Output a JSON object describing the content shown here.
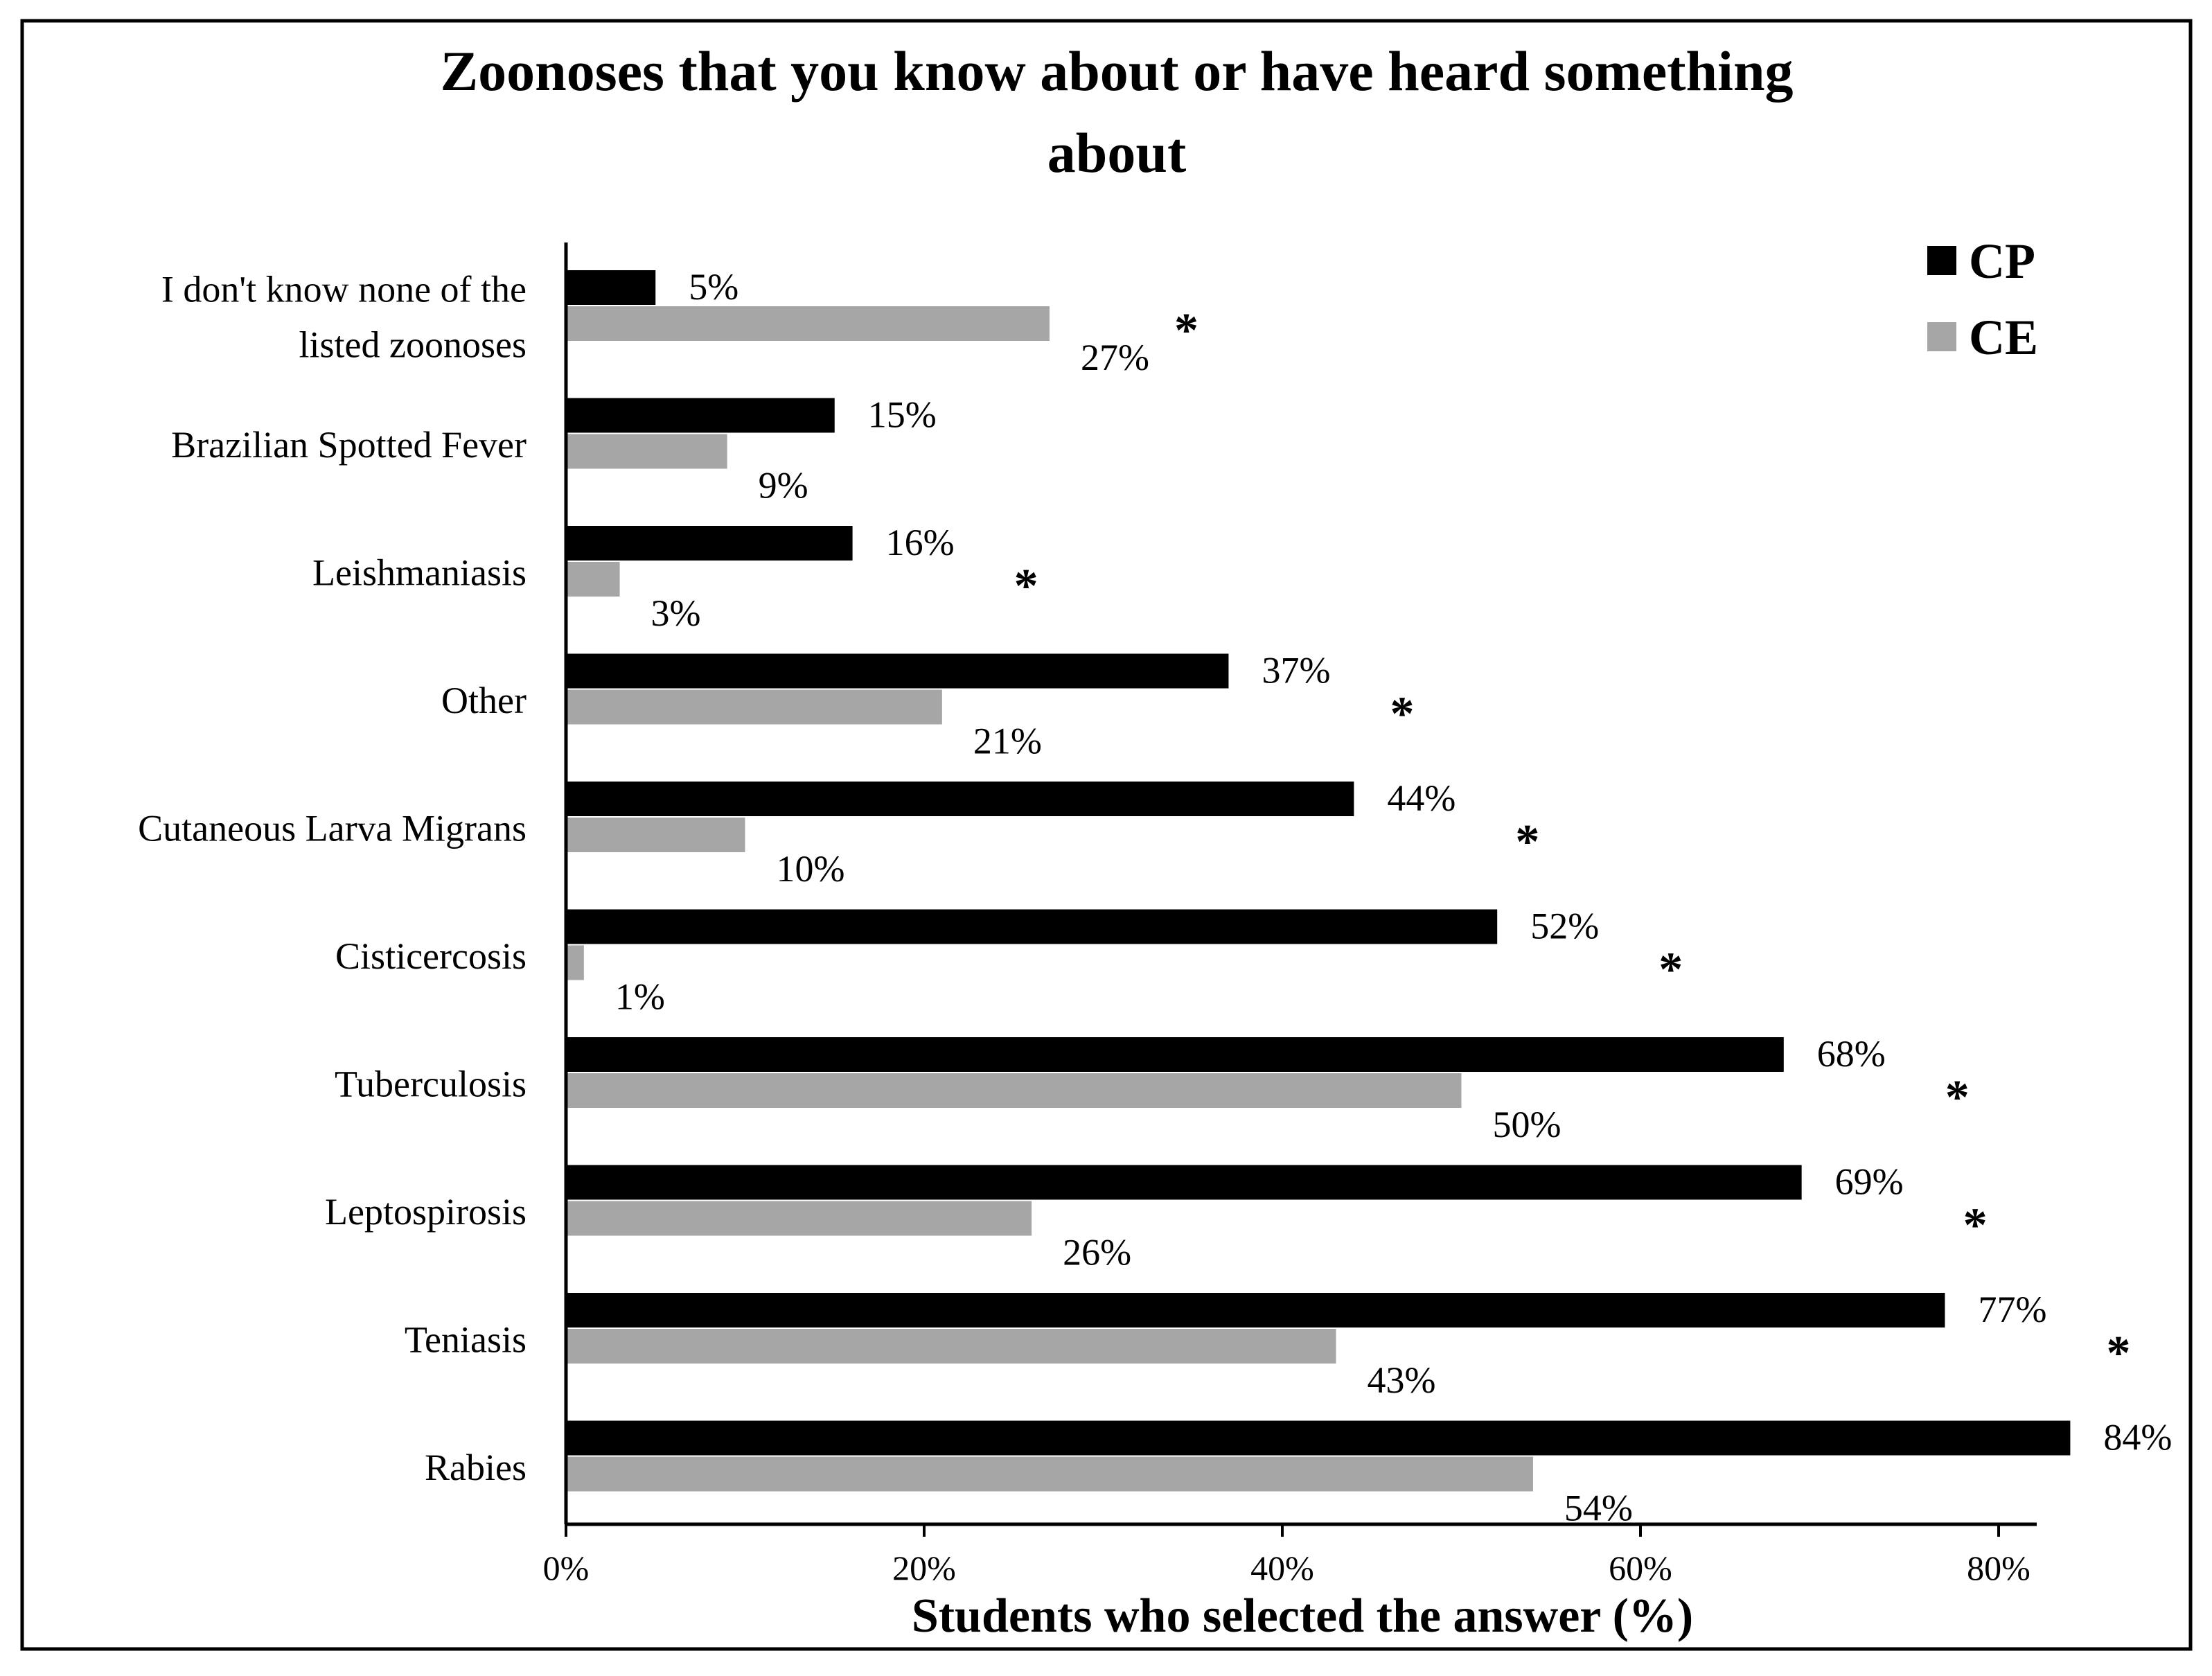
{
  "chart_data": {
    "type": "bar",
    "orientation": "horizontal",
    "title_lines": [
      "Zoonoses that you know about or have heard something",
      "about"
    ],
    "xlabel": "Students who selected the answer (%)",
    "ylabel": "",
    "xlim": [
      0,
      85
    ],
    "xticks": [
      0,
      20,
      40,
      60,
      80
    ],
    "xtick_labels": [
      "0%",
      "20%",
      "40%",
      "60%",
      "80%"
    ],
    "grid": false,
    "legend_position": "top-right",
    "categories": [
      [
        "I don't know none of the",
        "listed zoonoses"
      ],
      [
        "Brazilian Spotted Fever"
      ],
      [
        "Leishmaniasis"
      ],
      [
        "Other"
      ],
      [
        "Cutaneous Larva Migrans"
      ],
      [
        "Cisticercosis"
      ],
      [
        "Tuberculosis"
      ],
      [
        "Leptospirosis"
      ],
      [
        "Teniasis"
      ],
      [
        "Rabies"
      ]
    ],
    "series": [
      {
        "name": "CP",
        "color": "#000000",
        "values": [
          5,
          15,
          16,
          37,
          44,
          52,
          68,
          69,
          77,
          84
        ],
        "labels": [
          "5%",
          "15%",
          "16%",
          "37%",
          "44%",
          "52%",
          "68%",
          "69%",
          "77%",
          "84%"
        ]
      },
      {
        "name": "CE",
        "color": "#a6a6a6",
        "values": [
          27,
          9,
          3,
          21,
          10,
          1,
          50,
          26,
          43,
          54
        ],
        "labels": [
          "27%",
          "9%",
          "3%",
          "21%",
          "10%",
          "1%",
          "50%",
          "26%",
          "43%",
          "54%"
        ]
      }
    ],
    "significance_marker": "*",
    "significant": [
      true,
      false,
      true,
      true,
      true,
      true,
      true,
      true,
      true,
      true
    ]
  }
}
